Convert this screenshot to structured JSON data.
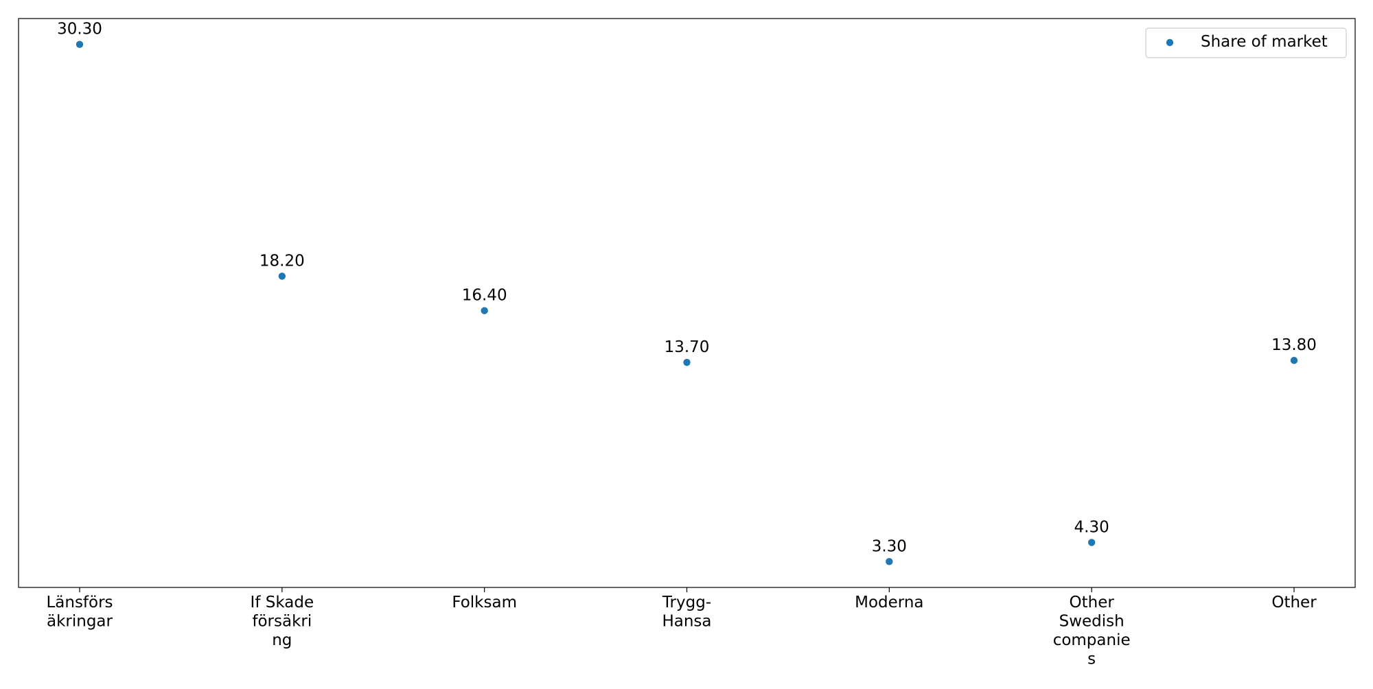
{
  "chart_data": {
    "type": "scatter",
    "categories": [
      [
        "Länsförs",
        "äkringar"
      ],
      [
        "If Skade",
        "försäkri",
        "ng"
      ],
      [
        "Folksam"
      ],
      [
        "Trygg-",
        "Hansa"
      ],
      [
        "Moderna"
      ],
      [
        "Other",
        "Swedish",
        "companie",
        "s"
      ],
      [
        "Other"
      ]
    ],
    "series": [
      {
        "name": "Share of market",
        "values": [
          30.3,
          18.2,
          16.4,
          13.7,
          3.3,
          4.3,
          13.8
        ],
        "color": "#1f77b4"
      }
    ],
    "data_labels": [
      "30.30",
      "18.20",
      "16.40",
      "13.70",
      "3.30",
      "4.30",
      "13.80"
    ],
    "ylim": [
      1.95,
      31.65
    ],
    "show_y_ticks": false,
    "grid": false,
    "legend_placement": "top-right",
    "title": "",
    "xlabel": "",
    "ylabel": ""
  }
}
